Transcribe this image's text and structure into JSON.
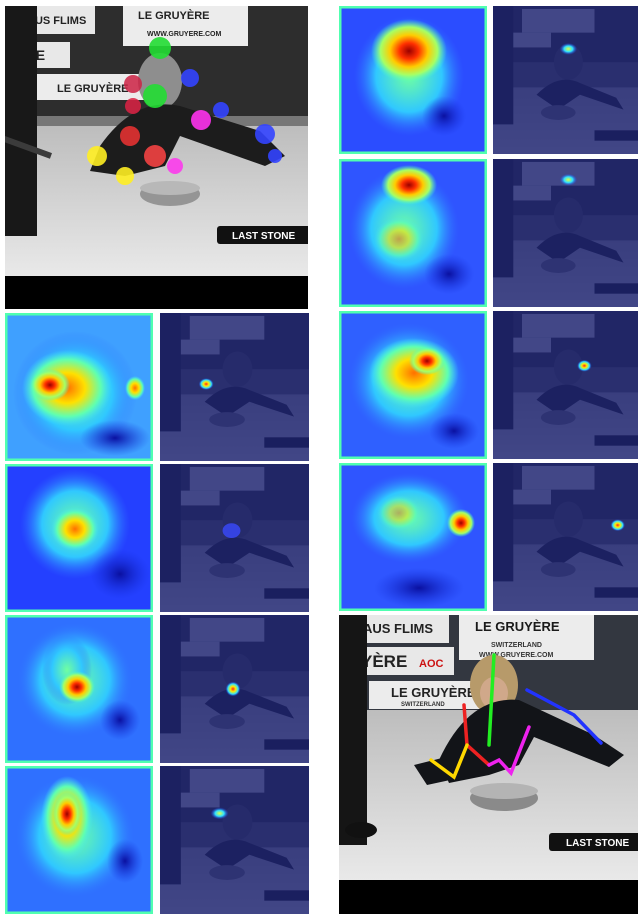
{
  "photo_text": {
    "last_stone": "LAST STONE",
    "banner_flims": "AUS FLIMS",
    "banner_gruyere": "LE GRUYÈRE",
    "banner_switzerland": "SWITZERLAND",
    "banner_web": "WWW.GRUYERE.COM",
    "banner_yere": "YÈRE",
    "banner_aop": "AOC"
  },
  "colors": {
    "heatmap_low": "#1a2fd6",
    "heatmap_mid": "#3fe0e0",
    "heatmap_hot": "#ffdd00",
    "heatmap_peak": "#b00000",
    "overlay_tint": "#1c2270",
    "pose_left_leg": "#ffd800",
    "pose_spine": "#22ee22",
    "pose_right_arm": "#2233ff",
    "pose_left_arm": "#ee2222",
    "pose_right_leg": "#ee22ee"
  }
}
